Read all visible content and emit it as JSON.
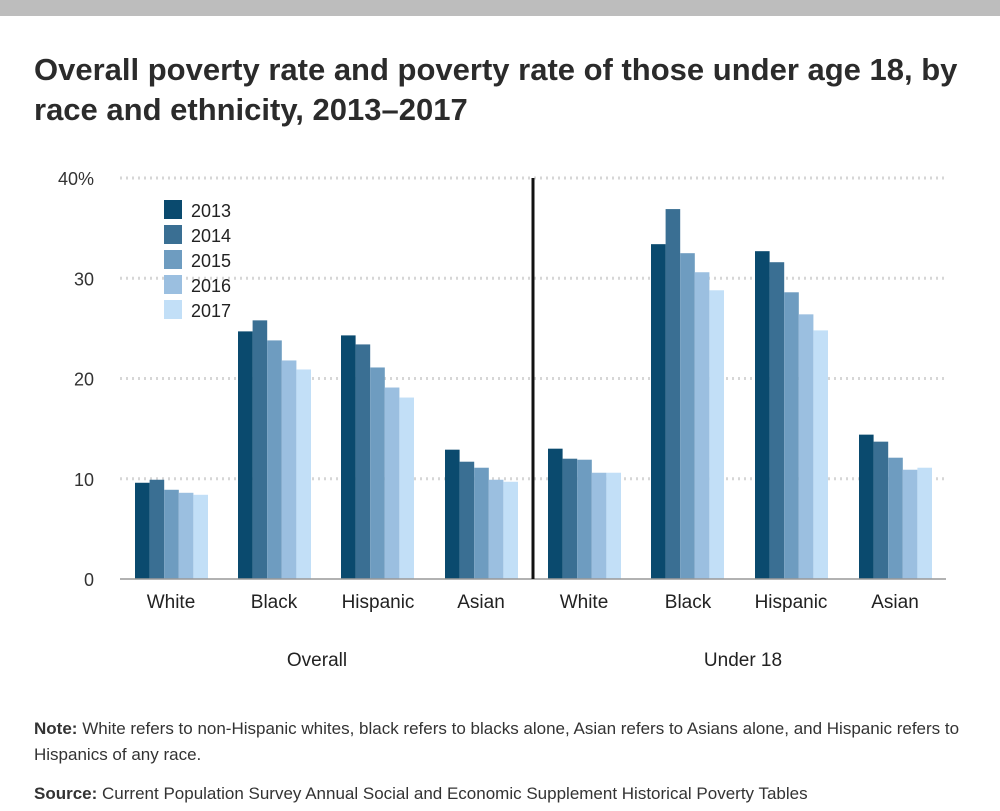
{
  "page": {
    "title": "Overall poverty rate and poverty rate of those under age 18, by race and ethnicity, 2013–2017",
    "note_label": "Note:",
    "note_text": "White refers to non-Hispanic whites, black refers to blacks alone, Asian refers to Asians alone, and Hispanic refers to Hispanics of any race.",
    "source_label": "Source:",
    "source_text": "Current Population Survey Annual Social and Economic Supplement Historical Poverty Tables"
  },
  "chart_data": {
    "type": "bar",
    "title": "Overall poverty rate and poverty rate of those under age 18, by race and ethnicity, 2013–2017",
    "ylim": [
      0,
      40
    ],
    "yticks": [
      0,
      10,
      20,
      30,
      40
    ],
    "ytick_labels": [
      "0",
      "10",
      "20",
      "30",
      "40%"
    ],
    "grid": true,
    "legend_position": "top-left",
    "series_colors": [
      "#0a4a6e",
      "#3a6f93",
      "#6e9cc0",
      "#9bbfe0",
      "#c2dff7"
    ],
    "groups": [
      {
        "label": "Overall",
        "categories": [
          "White",
          "Black",
          "Hispanic",
          "Asian"
        ],
        "series": [
          {
            "name": "2013",
            "values": [
              9.6,
              24.7,
              24.3,
              12.9
            ]
          },
          {
            "name": "2014",
            "values": [
              9.9,
              25.8,
              23.4,
              11.7
            ]
          },
          {
            "name": "2015",
            "values": [
              8.9,
              23.8,
              21.1,
              11.1
            ]
          },
          {
            "name": "2016",
            "values": [
              8.6,
              21.8,
              19.1,
              9.9
            ]
          },
          {
            "name": "2017",
            "values": [
              8.4,
              20.9,
              18.1,
              9.7
            ]
          }
        ]
      },
      {
        "label": "Under 18",
        "categories": [
          "White",
          "Black",
          "Hispanic",
          "Asian"
        ],
        "series": [
          {
            "name": "2013",
            "values": [
              13.0,
              33.4,
              32.7,
              14.4
            ]
          },
          {
            "name": "2014",
            "values": [
              12.0,
              36.9,
              31.6,
              13.7
            ]
          },
          {
            "name": "2015",
            "values": [
              11.9,
              32.5,
              28.6,
              12.1
            ]
          },
          {
            "name": "2016",
            "values": [
              10.6,
              30.6,
              26.4,
              10.9
            ]
          },
          {
            "name": "2017",
            "values": [
              10.6,
              28.8,
              24.8,
              11.1
            ]
          }
        ]
      }
    ]
  }
}
